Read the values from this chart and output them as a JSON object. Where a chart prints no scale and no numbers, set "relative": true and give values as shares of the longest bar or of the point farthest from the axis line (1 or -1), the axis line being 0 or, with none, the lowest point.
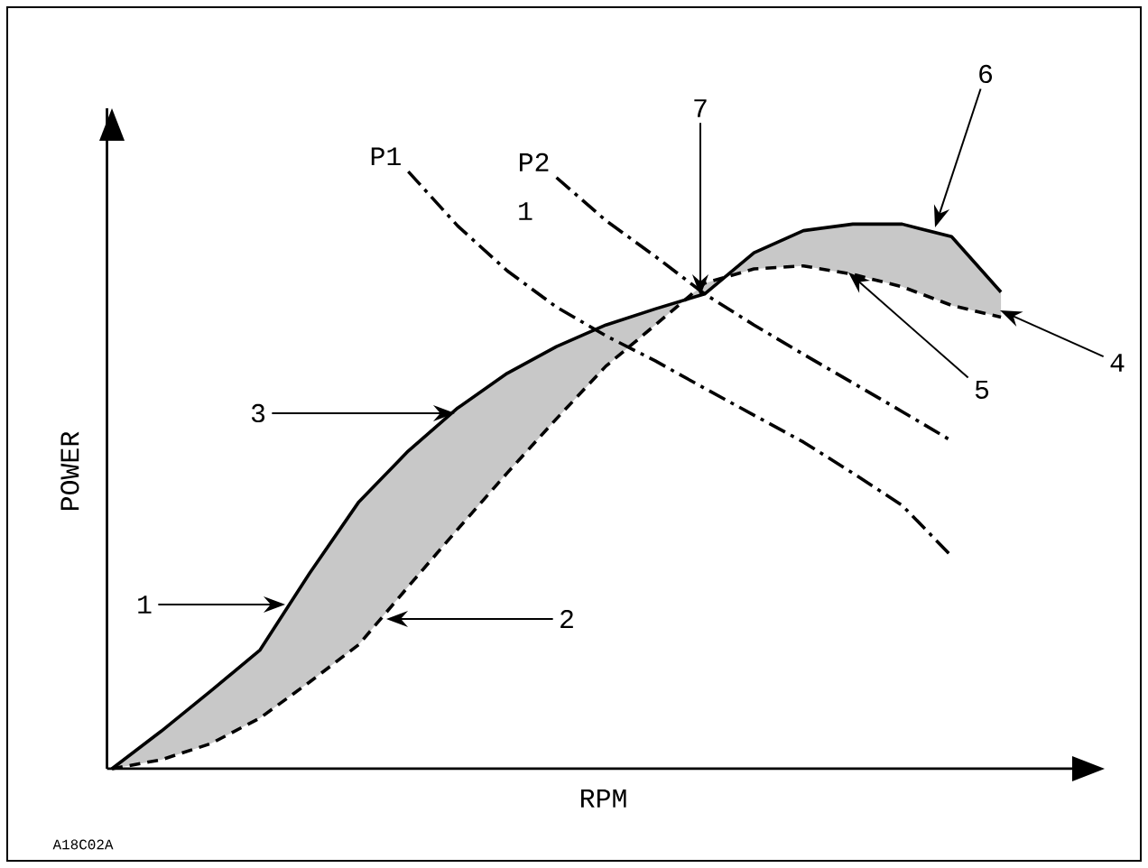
{
  "chart_data": {
    "type": "line",
    "relative": true,
    "xlabel": "RPM",
    "ylabel": "POWER",
    "categories": [
      null,
      null,
      null,
      null,
      null,
      null,
      null,
      null,
      null,
      null,
      null,
      null,
      null,
      null,
      null,
      null,
      null,
      null,
      null
    ],
    "series": [
      {
        "color": "#000000",
        "line_style": "solid",
        "values": [
          0,
          0.063,
          0.13,
          0.199,
          0.327,
          0.447,
          0.532,
          0.604,
          0.662,
          0.707,
          0.743,
          0.77,
          0.795,
          0.864,
          0.901,
          0.912,
          0.912,
          0.891,
          0.798
        ],
        "upper": [
          0,
          0.063,
          0.13,
          0.199,
          0.327,
          0.447,
          0.532,
          0.604,
          0.662,
          0.707,
          0.743,
          0.77,
          0.795,
          0.864,
          0.901,
          0.912,
          0.912,
          0.891,
          0.798
        ],
        "lower": [
          0,
          0.015,
          0.042,
          0.085,
          0.145,
          0.208,
          0.305,
          0.401,
          0.495,
          0.586,
          0.674,
          0.743,
          0.813,
          0.837,
          0.842,
          0.828,
          0.807,
          0.776,
          0.756
        ]
      },
      {
        "color": "#000000",
        "line_style": "dashed",
        "values": [
          0,
          0.015,
          0.042,
          0.085,
          0.145,
          0.208,
          0.305,
          0.401,
          0.495,
          0.586,
          0.674,
          0.743,
          0.813,
          0.837,
          0.842,
          0.828,
          0.807,
          0.776,
          0.756
        ]
      },
      {
        "name": "P1",
        "color": "#000000",
        "line_style": "dashdot",
        "values": [
          null,
          null,
          null,
          null,
          null,
          null,
          1,
          0.909,
          0.834,
          0.773,
          0.725,
          0.683,
          0.637,
          0.592,
          0.547,
          0.495,
          0.441,
          0.356,
          null
        ]
      },
      {
        "name": "P2",
        "color": "#000000",
        "line_style": "dashdot",
        "values": [
          null,
          null,
          null,
          null,
          null,
          null,
          null,
          null,
          null,
          0.99,
          0.918,
          0.858,
          0.795,
          0.743,
          0.694,
          0.646,
          0.598,
          0.549,
          null
        ]
      }
    ],
    "annotations": [
      "1",
      "2",
      "3",
      "4",
      "5",
      "6",
      "7",
      "1",
      "A18C02A"
    ]
  }
}
